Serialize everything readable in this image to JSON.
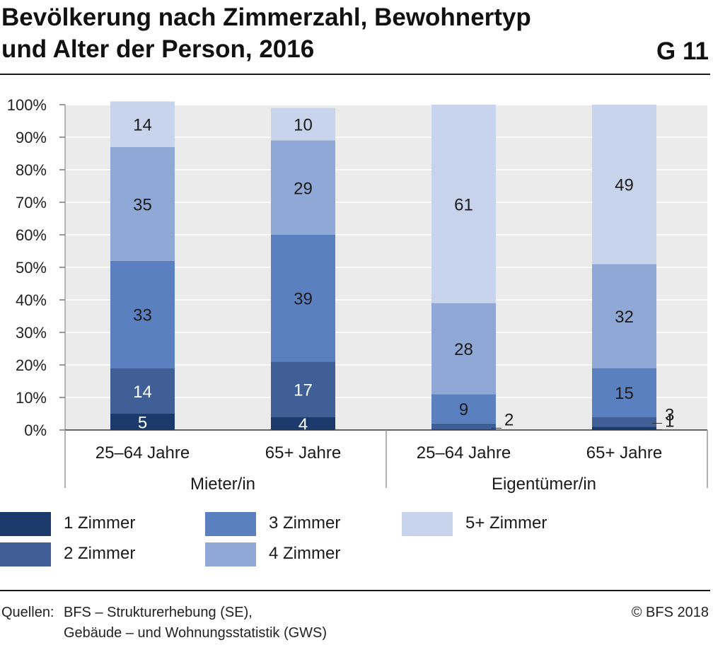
{
  "header": {
    "title_line1": "Bevölkerung nach Zimmerzahl, Bewohnertyp",
    "title_line2": "und Alter der Person, 2016",
    "graphic_number": "G 11"
  },
  "chart_data": {
    "type": "bar",
    "stacked": true,
    "percent": true,
    "title": "Bevölkerung nach Zimmerzahl, Bewohnertyp und Alter der Person, 2016",
    "groups": [
      {
        "label": "Mieter/in",
        "categories": [
          "25–64 Jahre",
          "65+ Jahre"
        ]
      },
      {
        "label": "Eigentümer/in",
        "categories": [
          "25–64 Jahre",
          "65+ Jahre"
        ]
      }
    ],
    "categories": [
      "25–64 Jahre",
      "65+ Jahre",
      "25–64 Jahre",
      "65+ Jahre"
    ],
    "series": [
      {
        "name": "1 Zimmer",
        "color": "#1b3a6b",
        "values": [
          5,
          4,
          0,
          1
        ]
      },
      {
        "name": "2 Zimmer",
        "color": "#3f5f96",
        "values": [
          14,
          17,
          2,
          3
        ]
      },
      {
        "name": "3 Zimmer",
        "color": "#5b80c0",
        "values": [
          33,
          39,
          9,
          15
        ]
      },
      {
        "name": "4 Zimmer",
        "color": "#8fa8d6",
        "values": [
          35,
          29,
          28,
          32
        ]
      },
      {
        "name": "5+ Zimmer",
        "color": "#c7d4ec",
        "values": [
          14,
          10,
          61,
          49
        ]
      }
    ],
    "data_labels": [
      [
        "5",
        "4",
        "",
        "1"
      ],
      [
        "14",
        "17",
        "2",
        "3"
      ],
      [
        "33",
        "39",
        "9",
        "15"
      ],
      [
        "35",
        "29",
        "28",
        "32"
      ],
      [
        "14",
        "10",
        "61",
        "49"
      ]
    ],
    "ylim": [
      0,
      100
    ],
    "yticks": [
      "0%",
      "10%",
      "20%",
      "30%",
      "40%",
      "50%",
      "60%",
      "70%",
      "80%",
      "90%",
      "100%"
    ],
    "grid": true,
    "legend_position": "bottom"
  },
  "legend": [
    {
      "label": "1 Zimmer",
      "color": "#1b3a6b"
    },
    {
      "label": "2 Zimmer",
      "color": "#3f5f96"
    },
    {
      "label": "3 Zimmer",
      "color": "#5b80c0"
    },
    {
      "label": "4 Zimmer",
      "color": "#8fa8d6"
    },
    {
      "label": "5+ Zimmer",
      "color": "#c7d4ec"
    }
  ],
  "footer": {
    "source_label": "Quellen:",
    "source_line1": "BFS – Strukturerhebung (SE),",
    "source_line2": "Gebäude – und Wohnungsstatistik (GWS)",
    "copyright": "© BFS 2018"
  }
}
